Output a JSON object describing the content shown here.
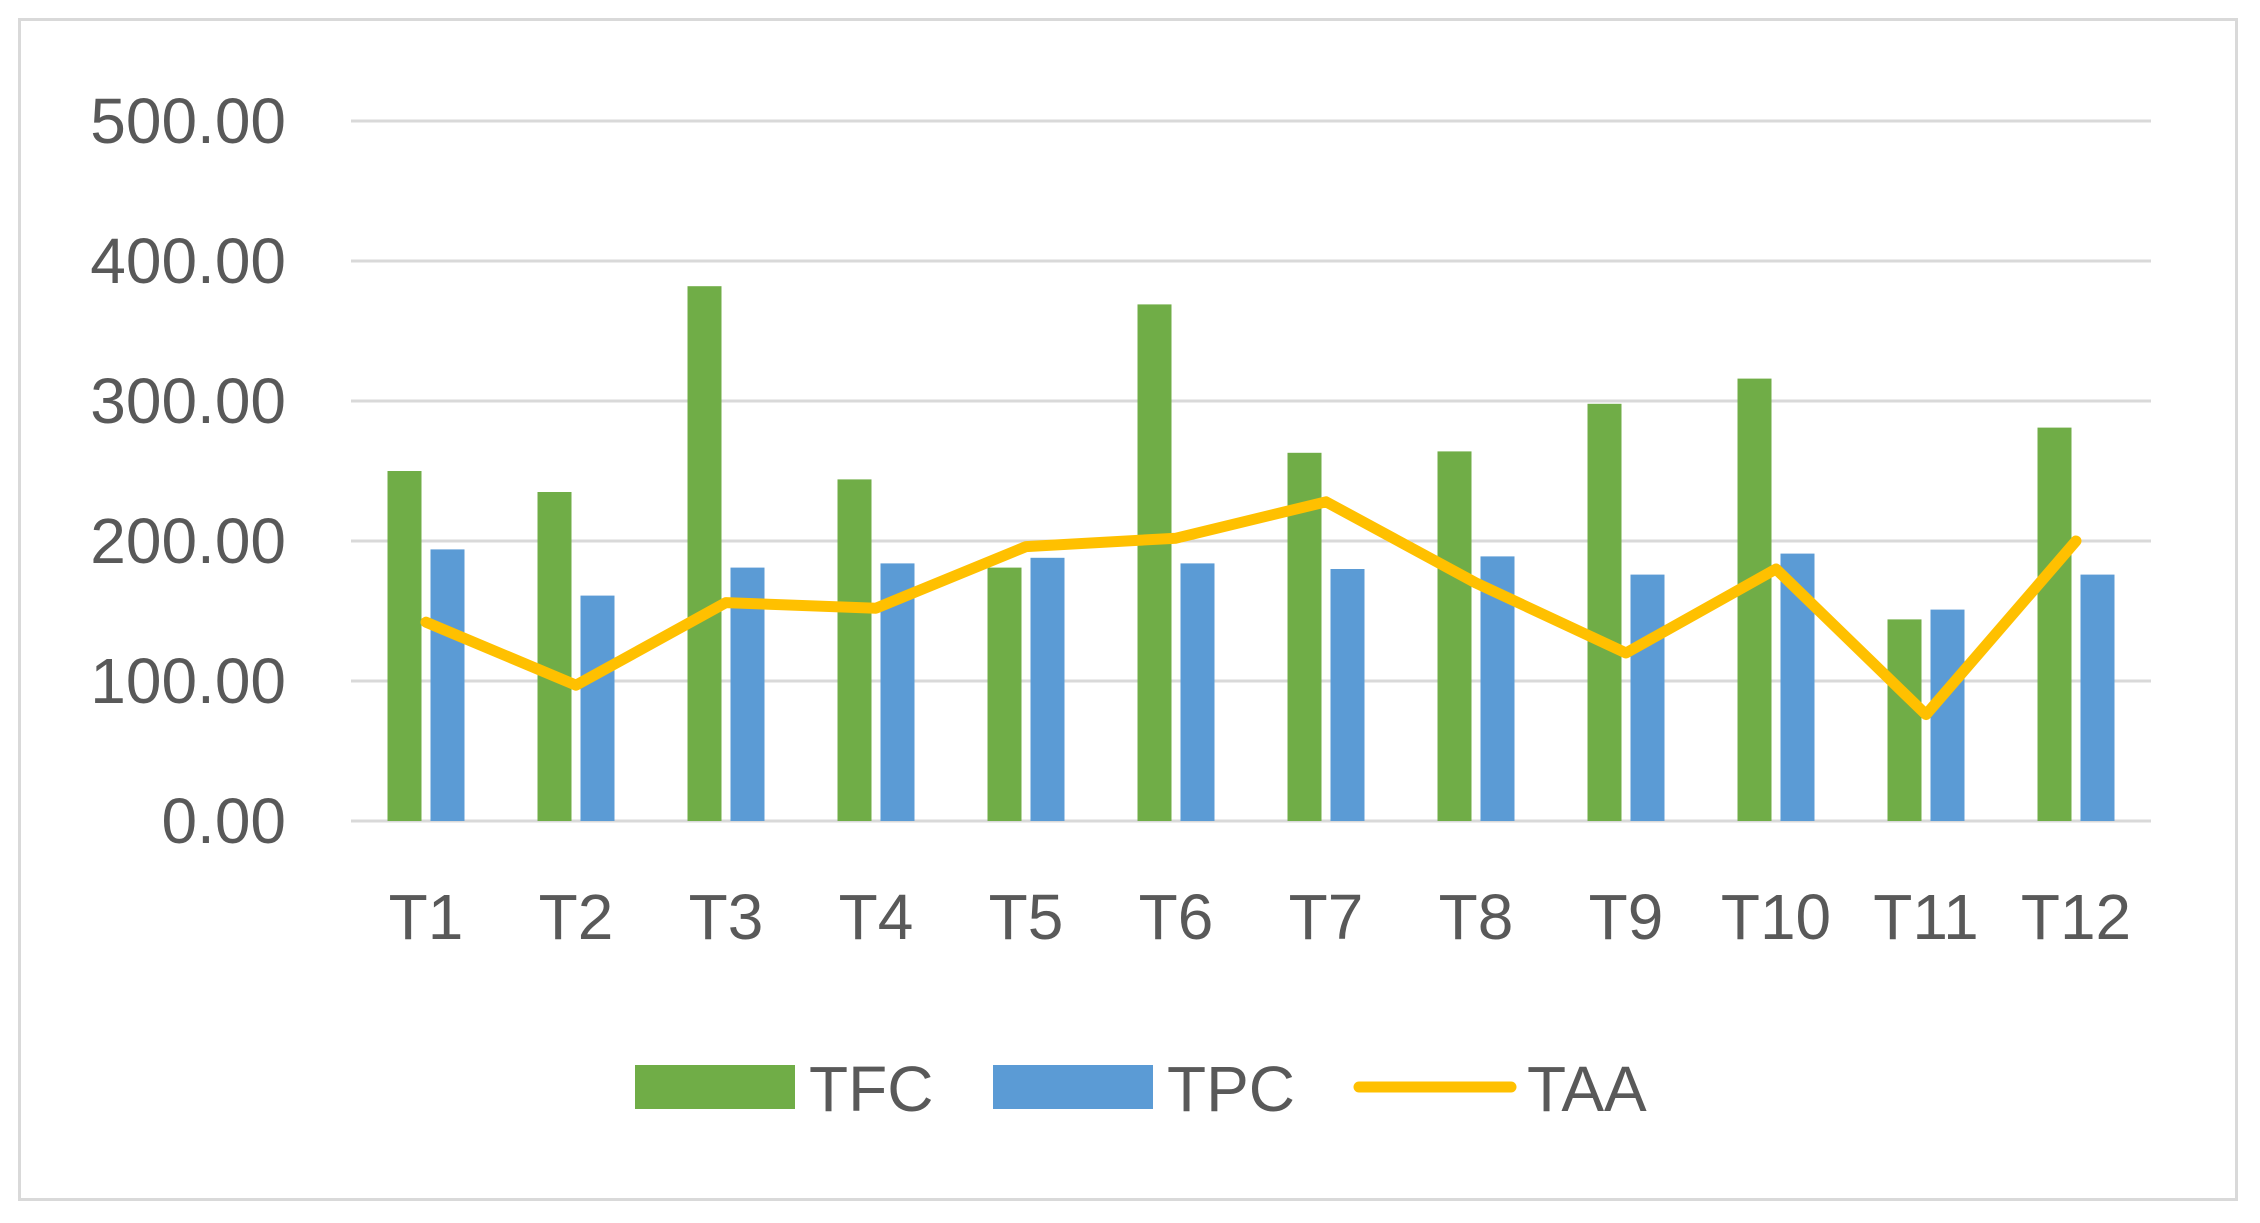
{
  "chart_data": {
    "type": "bar",
    "categories": [
      "T1",
      "T2",
      "T3",
      "T4",
      "T5",
      "T6",
      "T7",
      "T8",
      "T9",
      "T10",
      "T11",
      "T12"
    ],
    "series": [
      {
        "name": "TFC",
        "type": "bar",
        "color": "#70ad47",
        "values": [
          250,
          235,
          382,
          244,
          181,
          369,
          263,
          264,
          298,
          316,
          144,
          281
        ]
      },
      {
        "name": "TPC",
        "type": "bar",
        "color": "#5b9bd5",
        "values": [
          194,
          161,
          181,
          184,
          188,
          184,
          180,
          189,
          176,
          191,
          151,
          176
        ]
      },
      {
        "name": "TAA",
        "type": "line",
        "color": "#ffc000",
        "values": [
          142,
          97,
          156,
          152,
          196,
          202,
          228,
          170,
          120,
          180,
          76,
          200
        ]
      }
    ],
    "yticks": [
      "0.00",
      "100.00",
      "200.00",
      "300.00",
      "400.00",
      "500.00"
    ],
    "ylim": [
      0,
      500
    ],
    "grid": true,
    "legend_position": "bottom"
  }
}
